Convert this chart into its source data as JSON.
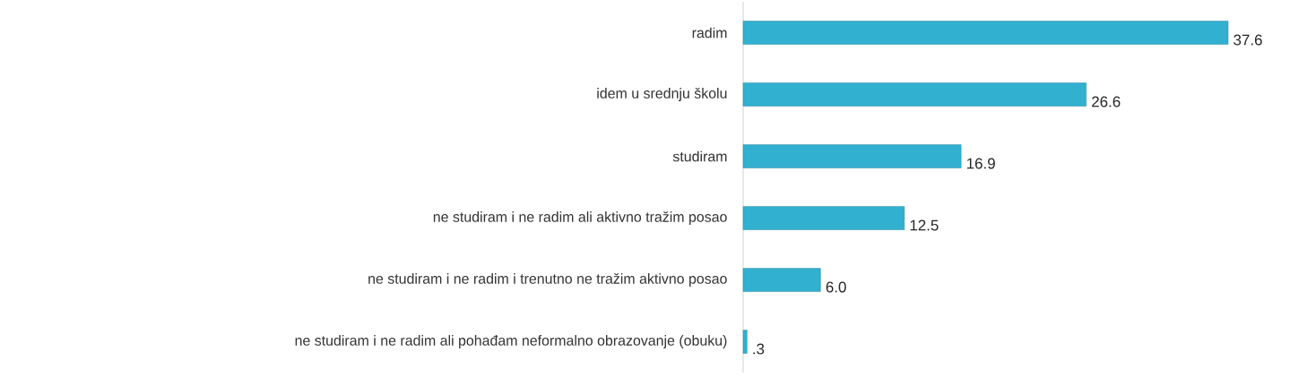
{
  "chart_data": {
    "type": "bar",
    "orientation": "horizontal",
    "categories": [
      "radim",
      "idem u srednju školu",
      "studiram",
      "ne studiram i ne radim ali aktivno tražim posao",
      "ne studiram i ne radim i trenutno ne tražim aktivno posao",
      "ne studiram i ne radim ali pohađam neformalno obrazovanje (obuku)"
    ],
    "values": [
      37.6,
      26.6,
      16.9,
      12.5,
      6.0,
      0.3
    ],
    "value_labels": [
      "37.6",
      "26.6",
      "16.9",
      "12.5",
      "6.0",
      ".3"
    ],
    "color": "#31b0d0"
  }
}
